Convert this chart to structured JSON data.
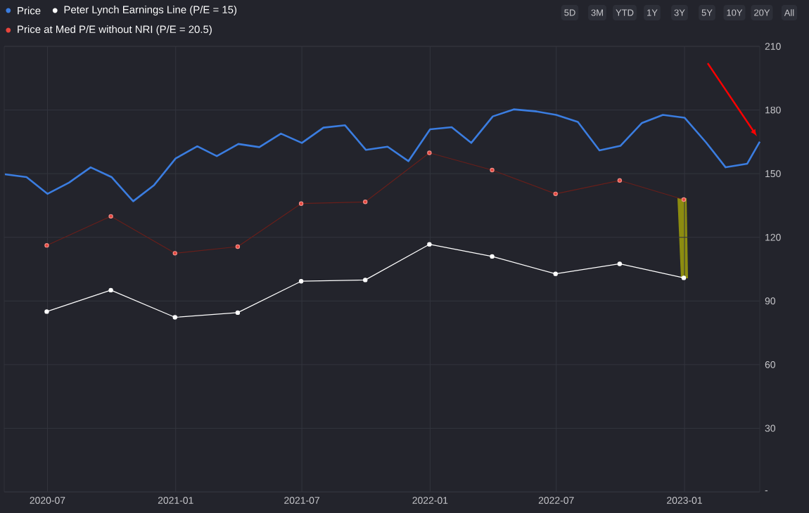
{
  "chart_data": {
    "type": "line",
    "series": [
      {
        "name": "Price",
        "color": "#3b7de0",
        "marker": "none",
        "x": [
          "2020-05",
          "2020-06",
          "2020-07",
          "2020-08",
          "2020-09",
          "2020-10",
          "2020-11",
          "2020-12",
          "2021-01",
          "2021-02",
          "2021-03",
          "2021-04",
          "2021-05",
          "2021-06",
          "2021-07",
          "2021-08",
          "2021-09",
          "2021-10",
          "2021-11",
          "2021-12",
          "2022-01",
          "2022-02",
          "2022-03",
          "2022-04",
          "2022-05",
          "2022-06",
          "2022-07",
          "2022-08",
          "2022-09",
          "2022-10",
          "2022-11",
          "2022-12",
          "2023-01",
          "2023-02",
          "2023-03",
          "2023-04",
          "2023-04-19"
        ],
        "values": [
          149.7,
          148.4,
          140.5,
          145.8,
          153,
          148.4,
          137,
          144.6,
          157.2,
          162.9,
          158.3,
          164,
          162.5,
          168.9,
          164.5,
          171.7,
          172.8,
          161.2,
          162.7,
          155.9,
          170.9,
          171.9,
          164.5,
          177,
          180.3,
          179.4,
          177.7,
          174.4,
          161,
          163.1,
          173.9,
          177.7,
          176.4,
          164.7,
          153,
          154.7,
          165.1
        ]
      },
      {
        "name": "Peter Lynch Earnings Line (P/E = 15)",
        "color": "#ffffff",
        "marker": "circle",
        "x": [
          "2020-06-30",
          "2020-09-30",
          "2020-12-31",
          "2021-03-31",
          "2021-06-30",
          "2021-09-30",
          "2021-12-31",
          "2022-03-31",
          "2022-06-30",
          "2022-09-30",
          "2022-12-31"
        ],
        "values": [
          85,
          95.1,
          82.3,
          84.5,
          99.3,
          99.9,
          116.7,
          111,
          102.8,
          107.5,
          100.9
        ]
      },
      {
        "name": "Price at Med P/E without NRI (P/E = 20.5)",
        "color": "#e8453c",
        "marker": "circle",
        "x": [
          "2020-06-30",
          "2020-09-30",
          "2020-12-31",
          "2021-03-31",
          "2021-06-30",
          "2021-09-30",
          "2021-12-31",
          "2022-03-31",
          "2022-06-30",
          "2022-09-30",
          "2022-12-31"
        ],
        "values": [
          116.2,
          129.9,
          112.5,
          115.6,
          135.9,
          136.7,
          159.8,
          151.7,
          140.5,
          146.8,
          137.8
        ]
      }
    ],
    "xlim": [
      "2020-04-30",
      "2023-04-19"
    ],
    "xticks": [
      "2020-07",
      "2021-01",
      "2021-07",
      "2022-01",
      "2022-07",
      "2023-01"
    ],
    "ylim": [
      0,
      210
    ],
    "yticks": [
      {
        "value": 0,
        "label": "-"
      },
      30,
      60,
      90,
      120,
      150,
      180,
      210
    ],
    "grid": true,
    "legend": "top left",
    "line_style": "solid",
    "annotations": [
      "5D",
      "3M",
      "YTD",
      "1Y",
      "3Y",
      "5Y",
      "10Y",
      "20Y",
      "All"
    ]
  }
}
